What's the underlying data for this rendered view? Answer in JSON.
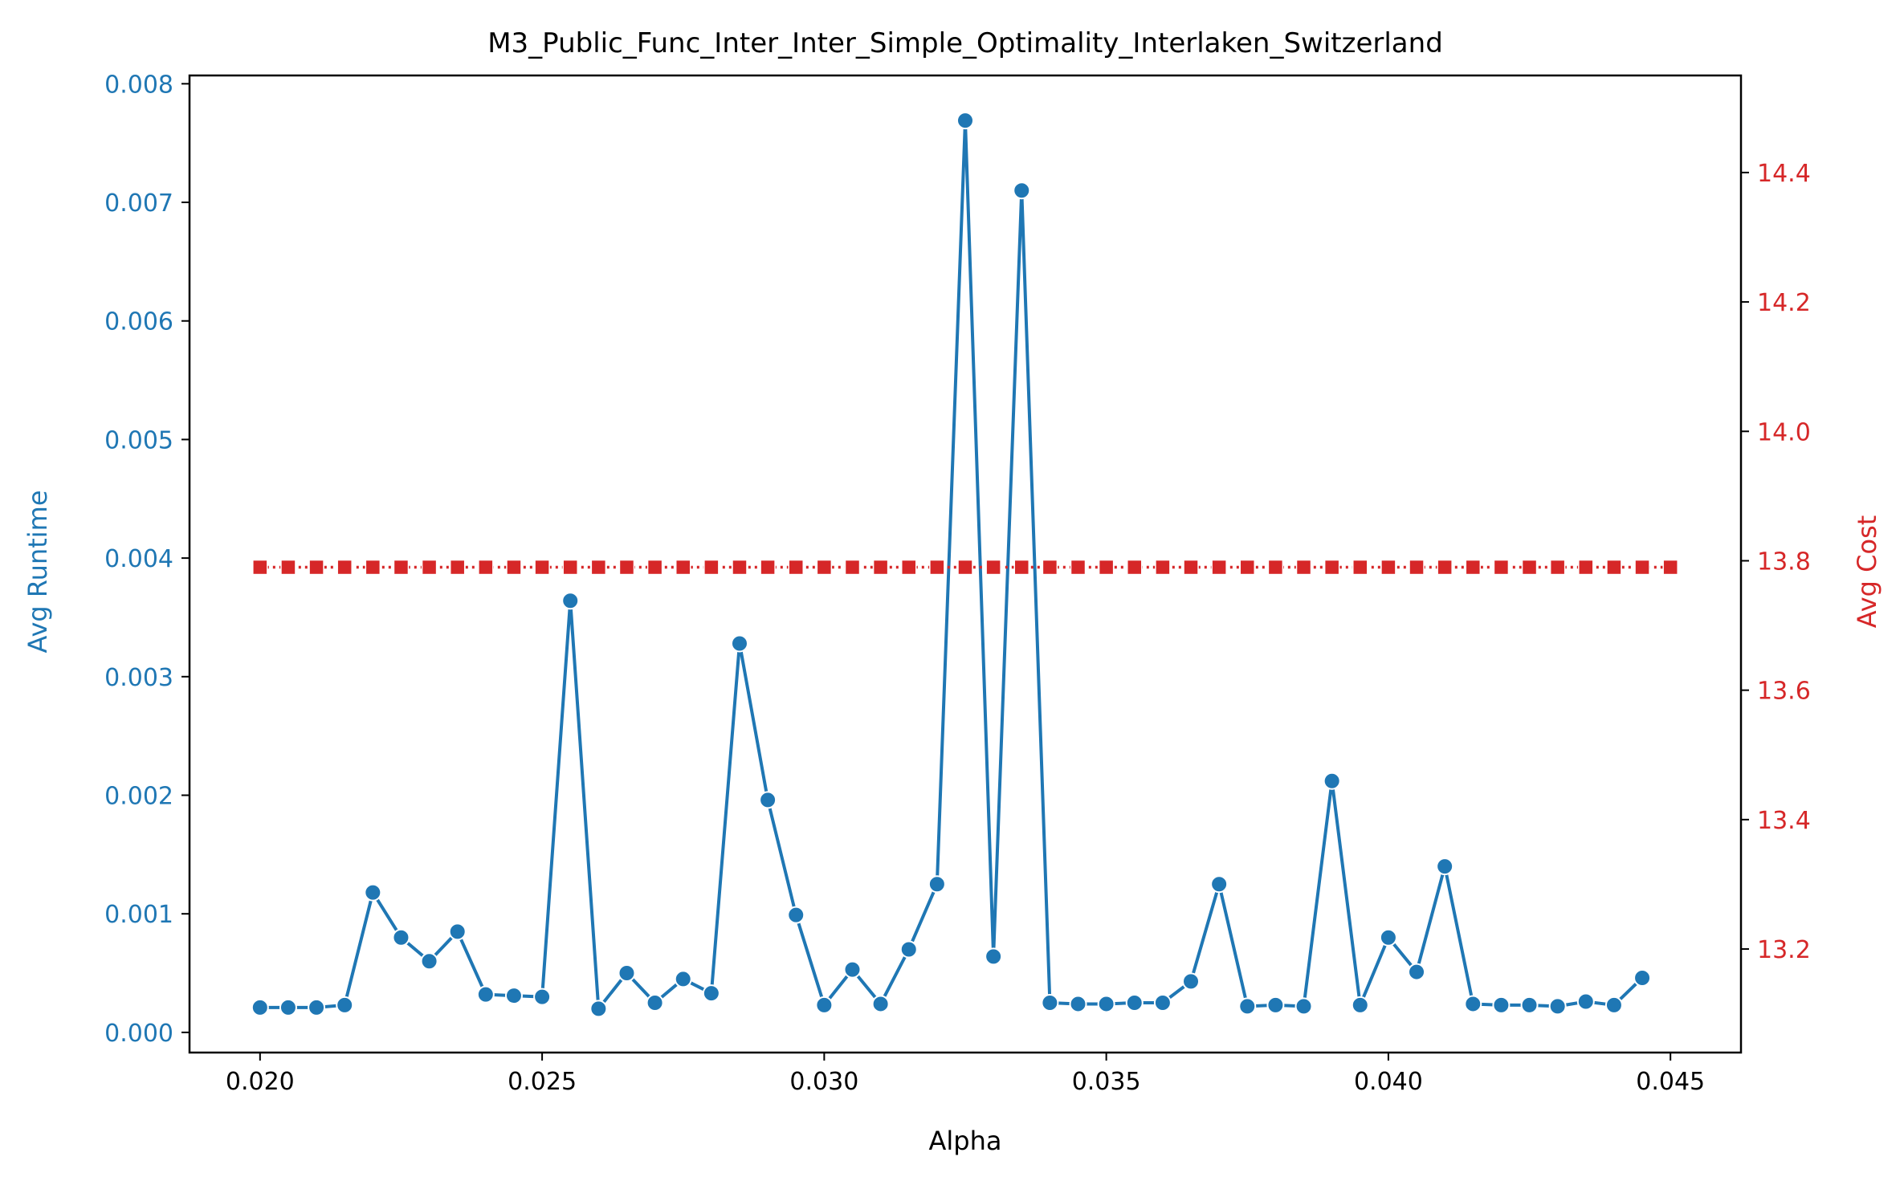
{
  "chart_data": {
    "type": "line",
    "title": "M3_Public_Func_Inter_Inter_Simple_Optimality_Interlaken_Switzerland",
    "xlabel": "Alpha",
    "ylabel_left": "Avg Runtime",
    "ylabel_right": "Avg Cost",
    "xlim": [
      0.01875,
      0.04625
    ],
    "ylim_left": [
      -0.00017,
      0.00807
    ],
    "ylim_right": [
      13.04,
      14.55
    ],
    "grid": false,
    "x_ticks": [
      "0.020",
      "0.025",
      "0.030",
      "0.035",
      "0.040",
      "0.045"
    ],
    "y_left_ticks": [
      "0.000",
      "0.001",
      "0.002",
      "0.003",
      "0.004",
      "0.005",
      "0.006",
      "0.007",
      "0.008"
    ],
    "y_right_ticks": [
      "13.2",
      "13.4",
      "13.6",
      "13.8",
      "14.0",
      "14.2",
      "14.4"
    ],
    "x": [
      0.02,
      0.0205,
      0.021,
      0.0215,
      0.022,
      0.0225,
      0.023,
      0.0235,
      0.024,
      0.0245,
      0.025,
      0.0255,
      0.026,
      0.0265,
      0.027,
      0.0275,
      0.028,
      0.0285,
      0.029,
      0.0295,
      0.03,
      0.0305,
      0.031,
      0.0315,
      0.032,
      0.0325,
      0.033,
      0.0335,
      0.034,
      0.0345,
      0.035,
      0.0355,
      0.036,
      0.0365,
      0.037,
      0.0375,
      0.038,
      0.0385,
      0.039,
      0.0395,
      0.04,
      0.0405,
      0.041,
      0.0415,
      0.042,
      0.0425,
      0.043,
      0.0435,
      0.044,
      0.0445,
      0.045
    ],
    "series": [
      {
        "axis": "left",
        "color": "#1f77b4",
        "marker": "circle",
        "values": [
          0.00021,
          0.00021,
          0.00021,
          0.00023,
          0.00118,
          0.0008,
          0.0006,
          0.00085,
          0.00032,
          0.00031,
          0.0003,
          0.00364,
          0.0002,
          0.0005,
          0.00025,
          0.00045,
          0.00033,
          0.00328,
          0.00196,
          0.00099,
          0.00023,
          0.00053,
          0.00024,
          0.0007,
          0.00125,
          0.00769,
          0.00064,
          0.0071,
          0.00025,
          0.00024,
          0.00024,
          0.00025,
          0.00025,
          0.00043,
          0.00125,
          0.00022,
          0.00023,
          0.00022,
          0.00212,
          0.00023,
          0.0008,
          0.00051,
          0.0014,
          0.00024,
          0.00023,
          0.00023,
          0.00022,
          0.00026,
          0.00023,
          0.00046,
          null
        ]
      },
      {
        "axis": "right",
        "color": "#d62728",
        "marker": "square",
        "values": [
          13.79,
          13.79,
          13.79,
          13.79,
          13.79,
          13.79,
          13.79,
          13.79,
          13.79,
          13.79,
          13.79,
          13.79,
          13.79,
          13.79,
          13.79,
          13.79,
          13.79,
          13.79,
          13.79,
          13.79,
          13.79,
          13.79,
          13.79,
          13.79,
          13.79,
          13.79,
          13.79,
          13.79,
          13.79,
          13.79,
          13.79,
          13.79,
          13.79,
          13.79,
          13.79,
          13.79,
          13.79,
          13.79,
          13.79,
          13.79,
          13.79,
          13.79,
          13.79,
          13.79,
          13.79,
          13.79,
          13.79,
          13.79,
          13.79,
          13.79,
          13.79
        ]
      }
    ],
    "colors": {
      "left_axis": "#1f77b4",
      "right_axis": "#d62728",
      "frame": "#000000"
    }
  }
}
